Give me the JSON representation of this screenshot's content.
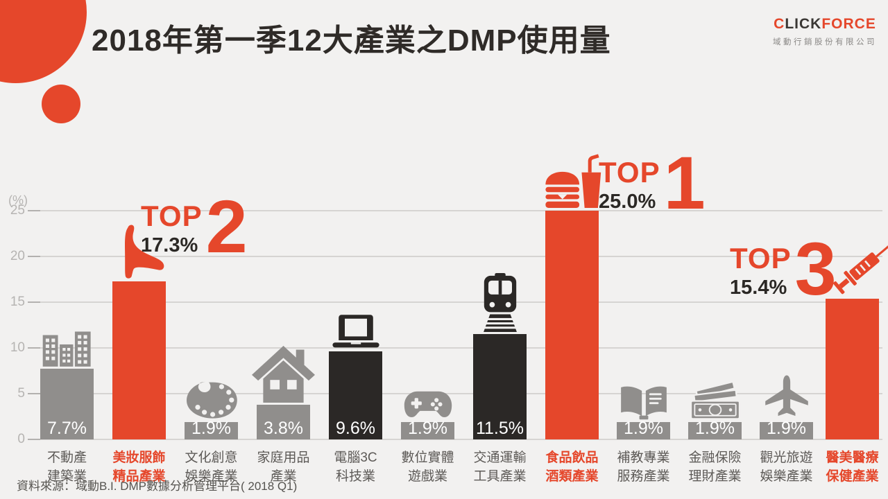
{
  "page": {
    "logo": {
      "brand_prefix": "C",
      "brand_mid": "LICK",
      "brand_suffix": "FORCE",
      "company": "域動行銷股份有限公司"
    },
    "source_note": "資料來源：域動B.I. DMP數據分析管理平台( 2018 Q1)"
  },
  "chart_data": {
    "type": "bar",
    "title": "2018年第一季12大產業之DMP使用量",
    "ylabel": "(%)",
    "ylim": [
      0,
      26
    ],
    "grid": true,
    "yticks": [
      "25",
      "20",
      "15",
      "10",
      "5",
      "0"
    ],
    "categories": [
      "不動產\n建築業",
      "美妝服飾\n精品產業",
      "文化創意\n娛樂產業",
      "家庭用品\n產業",
      "電腦3C\n科技業",
      "數位實體\n遊戲業",
      "交通運輸\n工具產業",
      "食品飲品\n酒類產業",
      "補教專業\n服務產業",
      "金融保險\n理財產業",
      "觀光旅遊\n娛樂產業",
      "醫美醫療\n保健產業"
    ],
    "values": [
      7.7,
      17.3,
      1.9,
      3.8,
      9.6,
      1.9,
      11.5,
      25.0,
      1.9,
      1.9,
      1.9,
      15.4
    ],
    "value_labels": [
      "7.7%",
      "",
      "1.9%",
      "3.8%",
      "9.6%",
      "1.9%",
      "11.5%",
      "",
      "1.9%",
      "1.9%",
      "1.9%",
      ""
    ],
    "bar_styles": [
      "gray",
      "red",
      "gray",
      "gray",
      "dark",
      "gray",
      "dark",
      "red",
      "gray",
      "gray",
      "gray",
      "red"
    ],
    "icons": [
      "buildings-icon",
      "high-heel-icon",
      "palette-icon",
      "house-icon",
      "laptop-icon",
      "gamepad-icon",
      "train-icon",
      "fastfood-icon",
      "book-icon",
      "money-icon",
      "airplane-icon",
      "syringe-icon"
    ],
    "annotations": [
      {
        "rank_word": "TOP",
        "rank": "1",
        "value_label": "25.0%",
        "bar_index": 7
      },
      {
        "rank_word": "TOP",
        "rank": "2",
        "value_label": "17.3%",
        "bar_index": 1
      },
      {
        "rank_word": "TOP",
        "rank": "3",
        "value_label": "15.4%",
        "bar_index": 11
      }
    ]
  },
  "palette": {
    "red": "#e5472b",
    "gray": "#908e8c",
    "dark": "#2b2826",
    "background": "#f2f1f0"
  }
}
